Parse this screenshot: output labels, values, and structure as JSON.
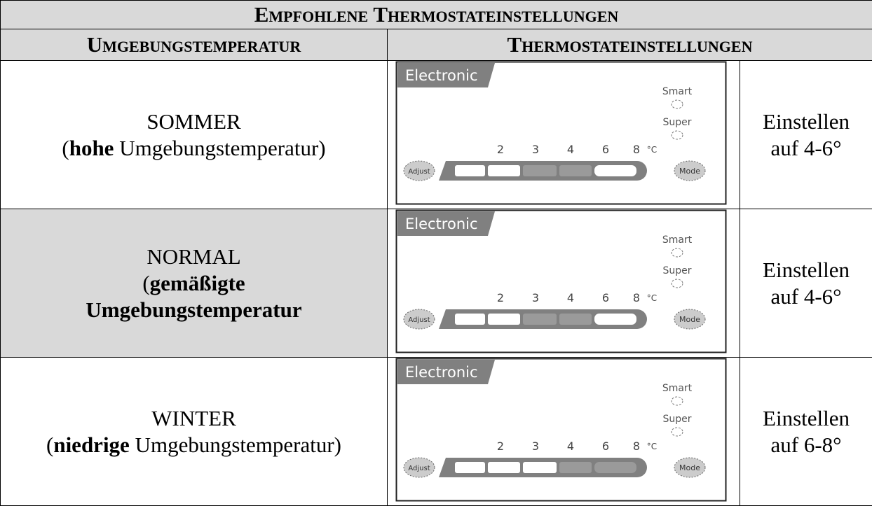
{
  "table": {
    "title": "Empfohlene Thermostateinstellungen",
    "headers": [
      "Umgebungstemperatur",
      "Thermostateinstellungen"
    ],
    "panel": {
      "brand": "Electronic",
      "smart": "Smart",
      "super": "Super",
      "scale": [
        "2",
        "3",
        "4",
        "6",
        "8"
      ],
      "unit": "°C",
      "adjust": "Adjust",
      "mode": "Mode"
    },
    "rows": [
      {
        "season": "SOMMER",
        "desc": [
          {
            "text": "(",
            "bold": false
          },
          {
            "text": "hohe",
            "bold": true
          },
          {
            "text": " Umgebungstemperatur)",
            "bold": false
          }
        ],
        "shaded": false,
        "active": [
          false,
          false,
          true,
          true,
          false
        ],
        "setting": [
          "Einstellen",
          "auf 4-6°"
        ]
      },
      {
        "season": "NORMAL",
        "desc": [
          {
            "text": "(",
            "bold": false
          },
          {
            "text": "gemäßigte Umgebungstemperatur",
            "bold": true
          }
        ],
        "shaded": true,
        "active": [
          false,
          false,
          true,
          true,
          false
        ],
        "setting": [
          "Einstellen",
          "auf 4-6°"
        ]
      },
      {
        "season": "WINTER",
        "desc": [
          {
            "text": "(",
            "bold": false
          },
          {
            "text": "niedrige",
            "bold": true
          },
          {
            "text": " Umgebungstemperatur)",
            "bold": false
          }
        ],
        "shaded": false,
        "active": [
          false,
          false,
          false,
          true,
          true
        ],
        "setting": [
          "Einstellen",
          "auf 6-8°"
        ]
      }
    ]
  }
}
